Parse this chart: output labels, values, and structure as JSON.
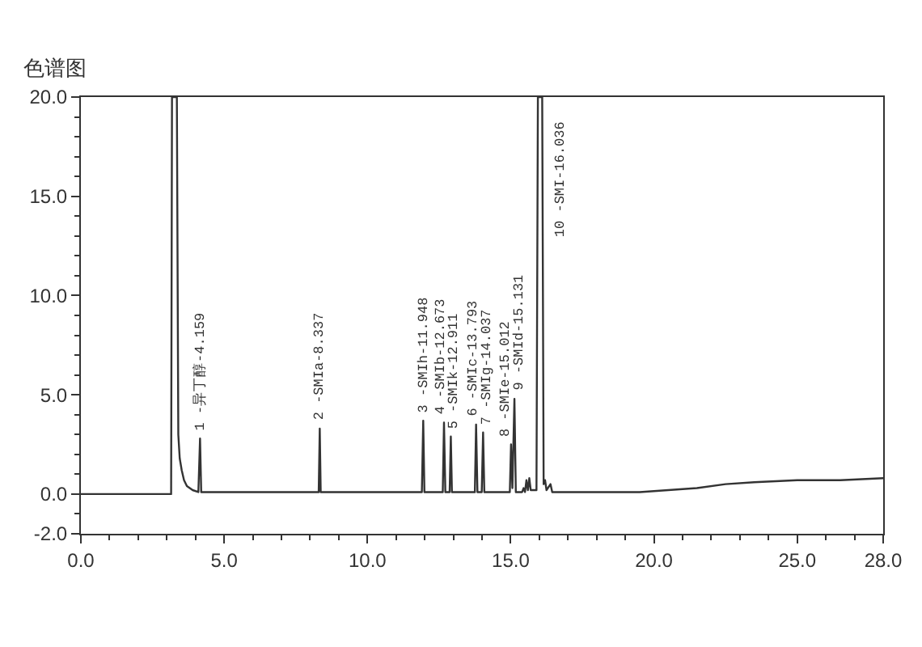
{
  "chart_data": {
    "type": "line",
    "title": "色谱图",
    "x": [
      0,
      3.15,
      3.18,
      3.35,
      3.4,
      3.45,
      3.52,
      3.6,
      3.7,
      3.9,
      4.1,
      4.159,
      4.2,
      5.0,
      8.3,
      8.337,
      8.37,
      11.9,
      11.948,
      11.99,
      12.63,
      12.673,
      12.72,
      12.87,
      12.911,
      12.95,
      13.75,
      13.793,
      13.84,
      13.99,
      14.037,
      14.08,
      14.97,
      15.012,
      15.06,
      15.131,
      15.18,
      15.4,
      15.45,
      15.5,
      15.55,
      15.6,
      15.65,
      15.7,
      15.75,
      15.9,
      15.95,
      16.1,
      16.15,
      16.2,
      16.25,
      16.39,
      16.45,
      17.0,
      19.5,
      20.5,
      21.5,
      22.5,
      23.5,
      25.0,
      26.5,
      28.0
    ],
    "series": [
      {
        "color": "#333333",
        "values": [
          0,
          0,
          20,
          20,
          3,
          1.8,
          1.2,
          0.7,
          0.4,
          0.2,
          0.1,
          2.8,
          0.1,
          0.1,
          0.1,
          3.3,
          0.1,
          0.1,
          3.7,
          0.1,
          0.1,
          3.6,
          0.1,
          0.1,
          2.9,
          0.1,
          0.1,
          3.5,
          0.1,
          0.1,
          3.1,
          0.1,
          0.1,
          2.5,
          0.3,
          4.8,
          0.1,
          0.1,
          0.3,
          0.1,
          0.7,
          0.2,
          0.8,
          0.2,
          0.2,
          0.2,
          20,
          20,
          0.5,
          0.7,
          0.2,
          0.5,
          0.1,
          0.1,
          0.1,
          0.2,
          0.3,
          0.5,
          0.6,
          0.7,
          0.7,
          0.8
        ]
      }
    ],
    "xlim": [
      0,
      28
    ],
    "ylim": [
      -2,
      20
    ],
    "xticks": [
      {
        "value": 0,
        "label": "0.0"
      },
      {
        "value": 1,
        "label": null
      },
      {
        "value": 2,
        "label": null
      },
      {
        "value": 3,
        "label": null
      },
      {
        "value": 4,
        "label": null
      },
      {
        "value": 5,
        "label": "5.0"
      },
      {
        "value": 6,
        "label": null
      },
      {
        "value": 7,
        "label": null
      },
      {
        "value": 8,
        "label": null
      },
      {
        "value": 9,
        "label": null
      },
      {
        "value": 10,
        "label": "10.0"
      },
      {
        "value": 11,
        "label": null
      },
      {
        "value": 12,
        "label": null
      },
      {
        "value": 13,
        "label": null
      },
      {
        "value": 14,
        "label": null
      },
      {
        "value": 15,
        "label": "15.0"
      },
      {
        "value": 16,
        "label": null
      },
      {
        "value": 17,
        "label": null
      },
      {
        "value": 18,
        "label": null
      },
      {
        "value": 19,
        "label": null
      },
      {
        "value": 20,
        "label": "20.0"
      },
      {
        "value": 21,
        "label": null
      },
      {
        "value": 22,
        "label": null
      },
      {
        "value": 23,
        "label": null
      },
      {
        "value": 24,
        "label": null
      },
      {
        "value": 25,
        "label": "25.0"
      },
      {
        "value": 26,
        "label": null
      },
      {
        "value": 27,
        "label": null
      },
      {
        "value": 28,
        "label": "28.0"
      }
    ],
    "yticks": [
      {
        "value": -2,
        "label": "-2.0"
      },
      {
        "value": -1,
        "label": null
      },
      {
        "value": 0,
        "label": "0.0"
      },
      {
        "value": 1,
        "label": null
      },
      {
        "value": 2,
        "label": null
      },
      {
        "value": 3,
        "label": null
      },
      {
        "value": 4,
        "label": null
      },
      {
        "value": 5,
        "label": "5.0"
      },
      {
        "value": 6,
        "label": null
      },
      {
        "value": 7,
        "label": null
      },
      {
        "value": 8,
        "label": null
      },
      {
        "value": 9,
        "label": null
      },
      {
        "value": 10,
        "label": "10.0"
      },
      {
        "value": 11,
        "label": null
      },
      {
        "value": 12,
        "label": null
      },
      {
        "value": 13,
        "label": null
      },
      {
        "value": 14,
        "label": null
      },
      {
        "value": 15,
        "label": "15.0"
      },
      {
        "value": 16,
        "label": null
      },
      {
        "value": 17,
        "label": null
      },
      {
        "value": 18,
        "label": null
      },
      {
        "value": 19,
        "label": null
      },
      {
        "value": 20,
        "label": "20.0"
      }
    ],
    "annotations": [
      {
        "text": "1 -异丁醇-4.159",
        "x": 4.159,
        "y": 2.8
      },
      {
        "text": "2 -SMIa-8.337",
        "x": 8.337,
        "y": 3.3
      },
      {
        "text": "3 -SMIh-11.948",
        "x": 11.948,
        "y": 3.7
      },
      {
        "text": "4 -SMIb-12.673",
        "x": 12.673,
        "y": 3.6
      },
      {
        "text": "5 -SMIk-12.911",
        "x": 12.911,
        "y": 2.9
      },
      {
        "text": "6 -SMIc-13.793",
        "x": 13.793,
        "y": 3.5
      },
      {
        "text": "7 -SMIg-14.037",
        "x": 14.037,
        "y": 3.1
      },
      {
        "text": "8 -SMIe-15.012",
        "x": 15.012,
        "y": 2.5
      },
      {
        "text": "9 -SMId-15.131",
        "x": 15.131,
        "y": 4.8
      },
      {
        "text": "10 -SMI-16.036",
        "x": 16.036,
        "y": 20
      }
    ]
  }
}
